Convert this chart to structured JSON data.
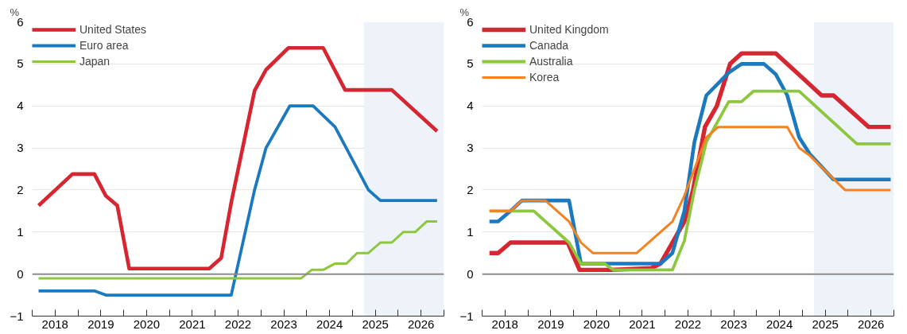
{
  "chart_data": [
    {
      "type": "line",
      "ylabel": "%",
      "xlim": [
        2018,
        2027
      ],
      "ylim": [
        -1,
        6
      ],
      "yticks": [
        -1,
        0,
        1,
        2,
        3,
        4,
        5,
        6
      ],
      "xticks": [
        {
          "value": 2018,
          "label": null
        },
        {
          "value": 2018.5,
          "label": "2018"
        },
        {
          "value": 2019,
          "label": null
        },
        {
          "value": 2019.5,
          "label": "2019"
        },
        {
          "value": 2020,
          "label": null
        },
        {
          "value": 2020.5,
          "label": "2020"
        },
        {
          "value": 2021,
          "label": null
        },
        {
          "value": 2021.5,
          "label": "2021"
        },
        {
          "value": 2022,
          "label": null
        },
        {
          "value": 2022.5,
          "label": "2022"
        },
        {
          "value": 2023,
          "label": null
        },
        {
          "value": 2023.5,
          "label": "2023"
        },
        {
          "value": 2024,
          "label": null
        },
        {
          "value": 2024.5,
          "label": "2024"
        },
        {
          "value": 2025,
          "label": null
        },
        {
          "value": 2025.5,
          "label": "2025"
        },
        {
          "value": 2026,
          "label": null
        },
        {
          "value": 2026.5,
          "label": "2026"
        },
        {
          "value": 2027,
          "label": null
        }
      ],
      "grid": "y",
      "legend": "top left",
      "line_style": "solid",
      "marker": "none",
      "ref_lines": [
        {
          "axis": "y",
          "value": 0,
          "color": "#8c8c8c"
        }
      ],
      "bands": [
        {
          "axis": "x",
          "from": 2025.25,
          "to": 2027,
          "color": "#eef3fa"
        }
      ],
      "series": [
        {
          "name": "United States",
          "color": "#d62631",
          "x": [
            2018.14,
            2018.88,
            2019.36,
            2019.61,
            2019.86,
            2020.12,
            2021.87,
            2022.13,
            2022.35,
            2022.6,
            2022.86,
            2023.11,
            2023.6,
            2024.36,
            2024.84,
            2025.86,
            2026.85
          ],
          "values": [
            1.63,
            2.38,
            2.38,
            1.86,
            1.63,
            0.13,
            0.13,
            0.38,
            1.7,
            3.0,
            4.36,
            4.86,
            5.38,
            5.38,
            4.38,
            4.38,
            3.4
          ]
        },
        {
          "name": "Euro area",
          "color": "#1b79bf",
          "x": [
            2018.14,
            2019.36,
            2019.61,
            2022.35,
            2022.86,
            2023.11,
            2023.63,
            2024.14,
            2024.62,
            2025.35,
            2025.61,
            2026.85
          ],
          "values": [
            -0.4,
            -0.4,
            -0.5,
            -0.5,
            2.0,
            3.0,
            4.0,
            4.0,
            3.5,
            2.0,
            1.75,
            1.75
          ]
        },
        {
          "name": "Japan",
          "color": "#8dc63f",
          "x": [
            2018.14,
            2023.88,
            2024.11,
            2024.36,
            2024.62,
            2024.87,
            2025.1,
            2025.35,
            2025.61,
            2025.86,
            2026.11,
            2026.37,
            2026.62,
            2026.85
          ],
          "values": [
            -0.1,
            -0.1,
            0.1,
            0.1,
            0.25,
            0.25,
            0.5,
            0.5,
            0.75,
            0.75,
            1.0,
            1.0,
            1.25,
            1.25
          ]
        }
      ]
    },
    {
      "type": "line",
      "ylabel": "%",
      "xlim": [
        2018,
        2027
      ],
      "ylim": [
        -1,
        6
      ],
      "yticks": [
        -1,
        0,
        1,
        2,
        3,
        4,
        5,
        6
      ],
      "xticks": [
        {
          "value": 2018,
          "label": null
        },
        {
          "value": 2018.5,
          "label": "2018"
        },
        {
          "value": 2019,
          "label": null
        },
        {
          "value": 2019.5,
          "label": "2019"
        },
        {
          "value": 2020,
          "label": null
        },
        {
          "value": 2020.5,
          "label": "2020"
        },
        {
          "value": 2021,
          "label": null
        },
        {
          "value": 2021.5,
          "label": "2021"
        },
        {
          "value": 2022,
          "label": null
        },
        {
          "value": 2022.5,
          "label": "2022"
        },
        {
          "value": 2023,
          "label": null
        },
        {
          "value": 2023.5,
          "label": "2023"
        },
        {
          "value": 2024,
          "label": null
        },
        {
          "value": 2024.5,
          "label": "2024"
        },
        {
          "value": 2025,
          "label": null
        },
        {
          "value": 2025.5,
          "label": "2025"
        },
        {
          "value": 2026,
          "label": null
        },
        {
          "value": 2026.5,
          "label": "2026"
        },
        {
          "value": 2027,
          "label": null
        }
      ],
      "grid": "y",
      "legend": "top left",
      "line_style": "solid",
      "marker": "none",
      "ref_lines": [
        {
          "axis": "y",
          "value": 0,
          "color": "#8c8c8c"
        }
      ],
      "bands": [
        {
          "axis": "x",
          "from": 2025.25,
          "to": 2027,
          "color": "#eef3fa"
        }
      ],
      "series": [
        {
          "name": "United Kingdom",
          "color": "#d62631",
          "x": [
            2018.16,
            2018.35,
            2018.62,
            2019.87,
            2020.13,
            2020.8,
            2021.7,
            2021.9,
            2022.16,
            2022.42,
            2022.61,
            2022.87,
            2023.13,
            2023.42,
            2023.67,
            2024.42,
            2025.42,
            2025.68,
            2026.45,
            2026.93
          ],
          "values": [
            0.5,
            0.5,
            0.75,
            0.75,
            0.1,
            0.1,
            0.14,
            0.25,
            0.75,
            1.25,
            2.0,
            3.5,
            4.0,
            5.0,
            5.25,
            5.25,
            4.25,
            4.25,
            3.5,
            3.5
          ]
        },
        {
          "name": "Canada",
          "color": "#1b79bf",
          "x": [
            2018.16,
            2018.35,
            2018.62,
            2018.87,
            2019.9,
            2020.16,
            2021.9,
            2022.16,
            2022.42,
            2022.64,
            2022.9,
            2023.39,
            2023.67,
            2024.16,
            2024.42,
            2024.67,
            2024.93,
            2025.16,
            2025.68,
            2026.93
          ],
          "values": [
            1.25,
            1.25,
            1.5,
            1.75,
            1.75,
            0.25,
            0.25,
            0.5,
            1.5,
            3.14,
            4.25,
            4.79,
            5.0,
            5.0,
            4.75,
            4.25,
            3.25,
            2.86,
            2.25,
            2.25
          ]
        },
        {
          "name": "Australia",
          "color": "#8dc63f",
          "x": [
            2018.16,
            2019.13,
            2019.9,
            2020.16,
            2020.67,
            2020.87,
            2022.16,
            2022.42,
            2022.64,
            2022.9,
            2023.39,
            2023.67,
            2023.93,
            2024.93,
            2026.19,
            2026.93
          ],
          "values": [
            1.5,
            1.5,
            0.75,
            0.25,
            0.25,
            0.1,
            0.1,
            0.79,
            2.0,
            3.14,
            4.1,
            4.1,
            4.35,
            4.35,
            3.1,
            3.1
          ]
        },
        {
          "name": "Korea",
          "color": "#f58220",
          "x": [
            2018.16,
            2018.62,
            2018.87,
            2019.38,
            2019.9,
            2020.16,
            2020.42,
            2021.38,
            2022.16,
            2022.42,
            2022.9,
            2023.16,
            2024.67,
            2024.93,
            2025.16,
            2025.93,
            2026.93
          ],
          "values": [
            1.5,
            1.5,
            1.75,
            1.75,
            1.25,
            0.75,
            0.5,
            0.5,
            1.25,
            1.86,
            3.25,
            3.5,
            3.5,
            3.0,
            2.82,
            2.0,
            2.0
          ]
        }
      ]
    }
  ]
}
